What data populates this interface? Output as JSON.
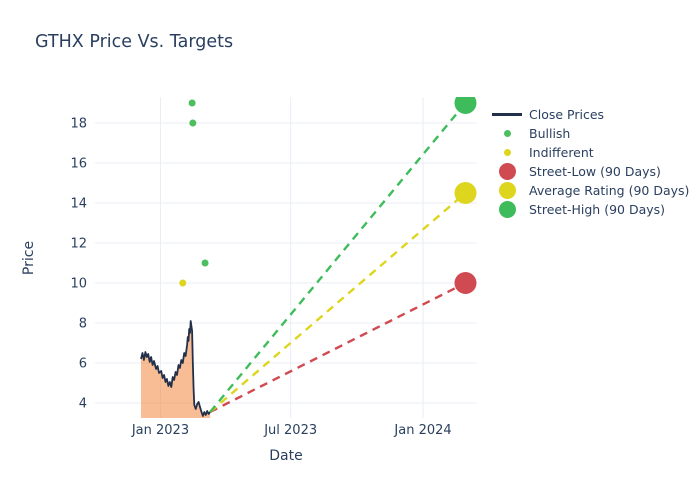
{
  "title": "GTHX Price Vs. Targets",
  "axes": {
    "x_title": "Date",
    "y_title": "Price"
  },
  "legend": {
    "items": [
      {
        "id": "close-prices",
        "label": "Close Prices",
        "marker": "line",
        "color": "#22304a"
      },
      {
        "id": "bullish",
        "label": "Bullish",
        "marker": "dot-small",
        "color": "#4cbe5e"
      },
      {
        "id": "indifferent",
        "label": "Indifferent",
        "marker": "dot-small",
        "color": "#ddd51e"
      },
      {
        "id": "street-low",
        "label": "Street-Low (90 Days)",
        "marker": "dot-large",
        "color": "#d04a52"
      },
      {
        "id": "average-rating",
        "label": "Average Rating (90 Days)",
        "marker": "dot-large",
        "color": "#ddd51e"
      },
      {
        "id": "street-high",
        "label": "Street-High (90 Days)",
        "marker": "dot-large",
        "color": "#3ebc5c"
      }
    ]
  },
  "chart_data": {
    "type": "line",
    "title": "GTHX Price Vs. Targets",
    "xlabel": "Date",
    "ylabel": "Price",
    "grid": true,
    "grid_color": "#e8eef6",
    "x_range": [
      "2022-10-02",
      "2024-03-16"
    ],
    "y_range": [
      3.25,
      19.3
    ],
    "y_ticks": [
      4,
      6,
      8,
      10,
      12,
      14,
      16,
      18
    ],
    "x_ticks": [
      {
        "date": "2023-01-01",
        "label": "Jan 2023"
      },
      {
        "date": "2023-07-01",
        "label": "Jul 2023"
      },
      {
        "date": "2024-01-01",
        "label": "Jan 2024"
      }
    ],
    "close_prices": {
      "name": "Close Prices",
      "line_color": "#22304a",
      "fill_color": "rgba(243,123,43,0.5)",
      "points": [
        [
          "2022-12-05",
          6.2
        ],
        [
          "2022-12-07",
          6.5
        ],
        [
          "2022-12-09",
          6.15
        ],
        [
          "2022-12-11",
          6.55
        ],
        [
          "2022-12-13",
          6.3
        ],
        [
          "2022-12-15",
          6.45
        ],
        [
          "2022-12-17",
          6.05
        ],
        [
          "2022-12-19",
          6.3
        ],
        [
          "2022-12-21",
          5.9
        ],
        [
          "2022-12-23",
          6.1
        ],
        [
          "2022-12-26",
          5.7
        ],
        [
          "2022-12-28",
          5.85
        ],
        [
          "2022-12-30",
          5.5
        ],
        [
          "2023-01-02",
          5.6
        ],
        [
          "2023-01-04",
          5.25
        ],
        [
          "2023-01-06",
          5.4
        ],
        [
          "2023-01-08",
          5.05
        ],
        [
          "2023-01-10",
          5.2
        ],
        [
          "2023-01-12",
          4.85
        ],
        [
          "2023-01-14",
          5.05
        ],
        [
          "2023-01-16",
          4.8
        ],
        [
          "2023-01-18",
          5.3
        ],
        [
          "2023-01-20",
          5.15
        ],
        [
          "2023-01-22",
          5.55
        ],
        [
          "2023-01-24",
          5.4
        ],
        [
          "2023-01-26",
          5.9
        ],
        [
          "2023-01-28",
          5.75
        ],
        [
          "2023-01-30",
          6.15
        ],
        [
          "2023-02-01",
          6.0
        ],
        [
          "2023-02-03",
          6.5
        ],
        [
          "2023-02-05",
          6.35
        ],
        [
          "2023-02-07",
          6.9
        ],
        [
          "2023-02-08",
          7.3
        ],
        [
          "2023-02-09",
          7.1
        ],
        [
          "2023-02-10",
          7.7
        ],
        [
          "2023-02-11",
          7.5
        ],
        [
          "2023-02-12",
          8.1
        ],
        [
          "2023-02-13",
          7.85
        ],
        [
          "2023-02-14",
          7.6
        ],
        [
          "2023-02-15",
          6.1
        ],
        [
          "2023-02-16",
          4.7
        ],
        [
          "2023-02-17",
          3.9
        ],
        [
          "2023-02-19",
          3.7
        ],
        [
          "2023-02-21",
          3.95
        ],
        [
          "2023-02-23",
          4.05
        ],
        [
          "2023-02-25",
          3.8
        ],
        [
          "2023-02-27",
          3.55
        ],
        [
          "2023-03-01",
          3.35
        ],
        [
          "2023-03-03",
          3.55
        ],
        [
          "2023-03-05",
          3.4
        ],
        [
          "2023-03-07",
          3.6
        ],
        [
          "2023-03-09",
          3.45
        ],
        [
          "2023-03-11",
          3.55
        ]
      ]
    },
    "analyst_points": [
      {
        "name": "Bullish",
        "color": "#4cbe5e",
        "size": 7,
        "points": [
          [
            "2023-02-14",
            19
          ],
          [
            "2023-02-15",
            18
          ],
          [
            "2023-03-04",
            11
          ]
        ]
      },
      {
        "name": "Indifferent",
        "color": "#ddd51e",
        "size": 7,
        "points": [
          [
            "2023-02-01",
            10
          ]
        ]
      }
    ],
    "targets": {
      "date": "2024-02-29",
      "connector_from": [
        "2023-03-11",
        3.55
      ],
      "marker_size": 22,
      "items": [
        {
          "name": "Street-Low (90 Days)",
          "value": 10,
          "color": "#d04a52"
        },
        {
          "name": "Average Rating (90 Days)",
          "value": 14.5,
          "color": "#ddd51e"
        },
        {
          "name": "Street-High (90 Days)",
          "value": 19,
          "color": "#3ebc5c"
        }
      ]
    }
  }
}
